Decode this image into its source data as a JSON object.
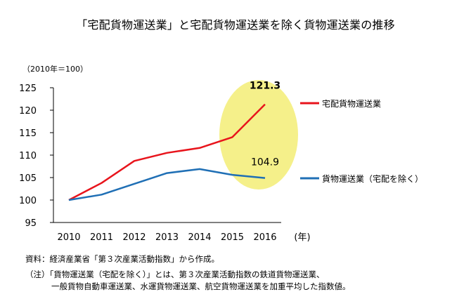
{
  "title": "「宅配貨物運送業」と宅配貨物運送業を除く貨物運送業の推移",
  "unit_label": "（2010年＝100）",
  "x_unit": "(年)",
  "source_text": "資料：経済産業省「第３次産業活動指数」から作成。",
  "note_line1": "（注）「貨物運送業（宅配を除く）」とは、第３次産業活動指数の鉄道貨物運送業、",
  "note_line2": "一般貨物自動車運送業、水運貨物運送業、航空貨物運送業を加重平均した指数値。",
  "colors": {
    "series_red": "#e8141c",
    "series_blue": "#1f6fb5",
    "highlight": "#f5f08a",
    "axis": "#000000"
  },
  "chart_data": {
    "type": "line",
    "categories": [
      "2010",
      "2011",
      "2012",
      "2013",
      "2014",
      "2015",
      "2016"
    ],
    "ylim": [
      95,
      125
    ],
    "yticks": [
      95,
      100,
      105,
      110,
      115,
      120,
      125
    ],
    "series": [
      {
        "name": "宅配貨物運送業",
        "color": "#e8141c",
        "values": [
          100,
          103.8,
          108.7,
          110.5,
          111.6,
          114.0,
          121.3
        ],
        "end_label": "121.3"
      },
      {
        "name": "貨物運送業（宅配を除く）",
        "color": "#1f6fb5",
        "values": [
          100,
          101.2,
          103.6,
          106.0,
          106.9,
          105.6,
          104.9
        ],
        "end_label": "104.9"
      }
    ]
  }
}
